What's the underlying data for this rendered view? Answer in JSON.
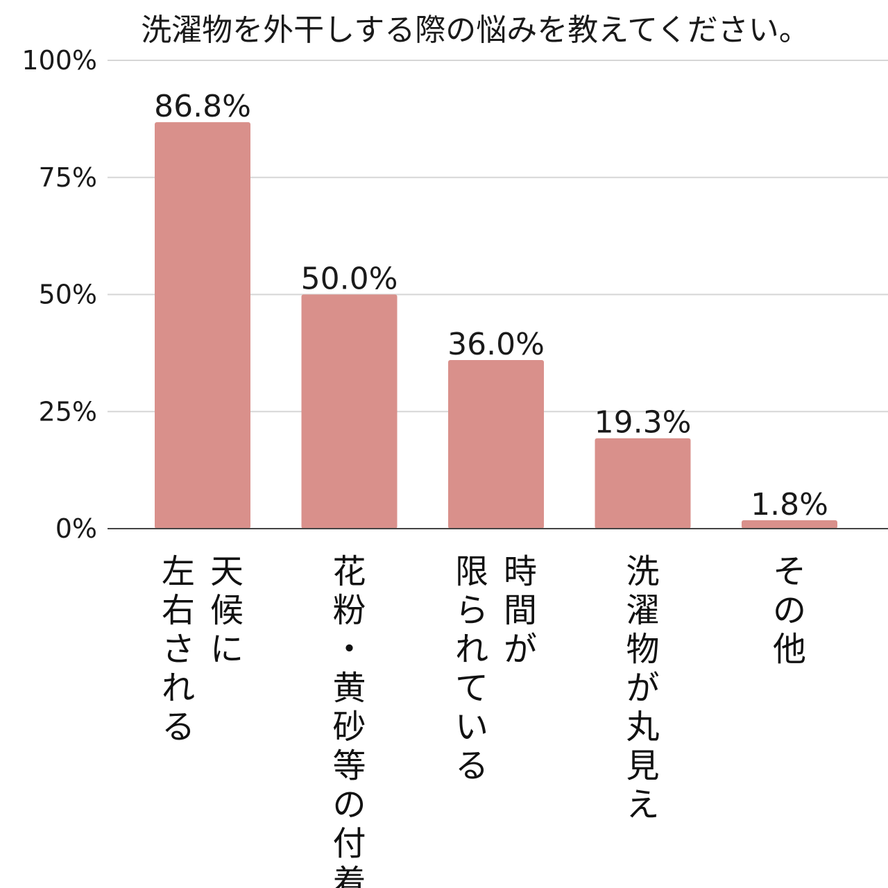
{
  "chart_data": {
    "type": "bar",
    "title": "洗濯物を外干しする際の悩みを教えてください。",
    "categories": [
      "天候に左右される",
      "花粉・黄砂等の付着",
      "時間が限られている",
      "洗濯物が丸見え",
      "その他"
    ],
    "category_columns": [
      [
        "天候に",
        "左右される"
      ],
      [
        "花粉・黄砂等の付着"
      ],
      [
        "時間が",
        "限られている"
      ],
      [
        "洗濯物が丸見え"
      ],
      [
        "その他"
      ]
    ],
    "values": [
      86.8,
      50.0,
      36.0,
      19.3,
      1.8
    ],
    "data_labels": [
      "86.8%",
      "50.0%",
      "36.0%",
      "19.3%",
      "1.8%"
    ],
    "ylim": [
      0,
      100
    ],
    "yticks": [
      0,
      25,
      50,
      75,
      100
    ],
    "ytick_labels": [
      "0%",
      "25%",
      "50%",
      "75%",
      "100%"
    ],
    "xlabel": "",
    "ylabel": "",
    "grid": true,
    "bar_color": "#d9908b",
    "label_orientation": "vertical"
  }
}
